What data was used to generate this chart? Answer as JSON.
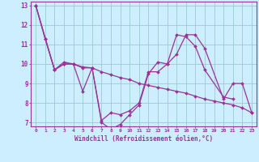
{
  "xlabel": "Windchill (Refroidissement éolien,°C)",
  "background_color": "#cceeff",
  "line_color": "#993399",
  "grid_color": "#99cccc",
  "xlim": [
    -0.5,
    23.5
  ],
  "ylim": [
    6.8,
    13.2
  ],
  "yticks": [
    7,
    8,
    9,
    10,
    11,
    12,
    13
  ],
  "xticks": [
    0,
    1,
    2,
    3,
    4,
    5,
    6,
    7,
    8,
    9,
    10,
    11,
    12,
    13,
    14,
    15,
    16,
    17,
    18,
    19,
    20,
    21,
    22,
    23
  ],
  "series": [
    {
      "x": [
        0,
        1,
        2,
        3,
        4,
        5,
        6,
        7,
        8,
        9,
        10,
        11,
        12,
        13,
        14,
        15,
        16,
        17,
        18,
        20,
        21
      ],
      "y": [
        13.0,
        11.3,
        9.7,
        10.1,
        10.0,
        8.6,
        9.8,
        7.0,
        6.65,
        6.9,
        7.4,
        7.9,
        9.5,
        10.1,
        10.0,
        11.5,
        11.4,
        10.9,
        9.7,
        8.3,
        8.2
      ]
    },
    {
      "x": [
        0,
        1,
        2,
        3,
        4,
        5,
        6,
        7,
        8,
        9,
        10,
        11,
        12,
        13,
        14,
        15,
        16,
        17,
        18,
        20,
        21,
        22,
        23
      ],
      "y": [
        13.0,
        11.3,
        9.7,
        10.0,
        10.0,
        9.8,
        9.8,
        7.1,
        7.5,
        7.4,
        7.6,
        8.0,
        9.6,
        9.6,
        10.0,
        10.5,
        11.5,
        11.5,
        10.8,
        8.2,
        9.0,
        9.0,
        7.5
      ]
    },
    {
      "x": [
        0,
        2,
        3,
        4,
        5,
        6,
        7,
        8,
        9,
        10,
        11,
        12,
        13,
        14,
        15,
        16,
        17,
        18,
        19,
        20,
        21,
        22,
        23
      ],
      "y": [
        13.0,
        9.7,
        10.0,
        10.0,
        9.85,
        9.8,
        9.6,
        9.45,
        9.3,
        9.2,
        9.0,
        8.9,
        8.8,
        8.7,
        8.6,
        8.5,
        8.35,
        8.2,
        8.1,
        8.0,
        7.9,
        7.75,
        7.5
      ]
    }
  ]
}
